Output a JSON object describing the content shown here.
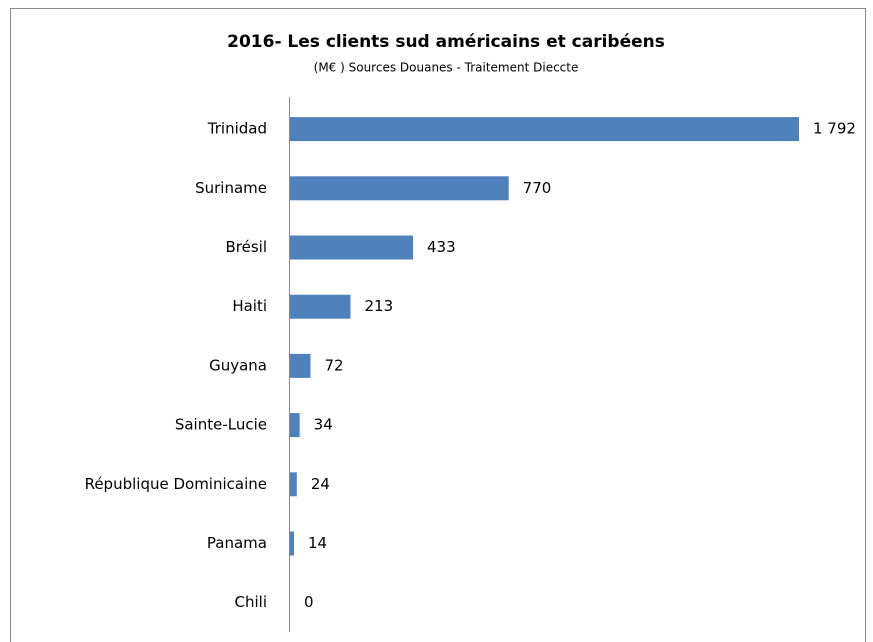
{
  "chart_data": {
    "type": "bar",
    "orientation": "horizontal",
    "title": "2016- Les clients sud américains et caribéens",
    "subtitle": "(M€ ) Sources Douanes - Traitement Dieccte",
    "categories": [
      "Trinidad",
      "Suriname",
      "Brésil",
      "Haiti",
      "Guyana",
      "Sainte-Lucie",
      "République Dominicaine",
      "Panama",
      "Chili"
    ],
    "values": [
      1792,
      770,
      433,
      213,
      72,
      34,
      24,
      14,
      0
    ],
    "value_labels": [
      "1 792",
      "770",
      "433",
      "213",
      "72",
      "34",
      "24",
      "14",
      "0"
    ],
    "color": "#4f81bd"
  }
}
